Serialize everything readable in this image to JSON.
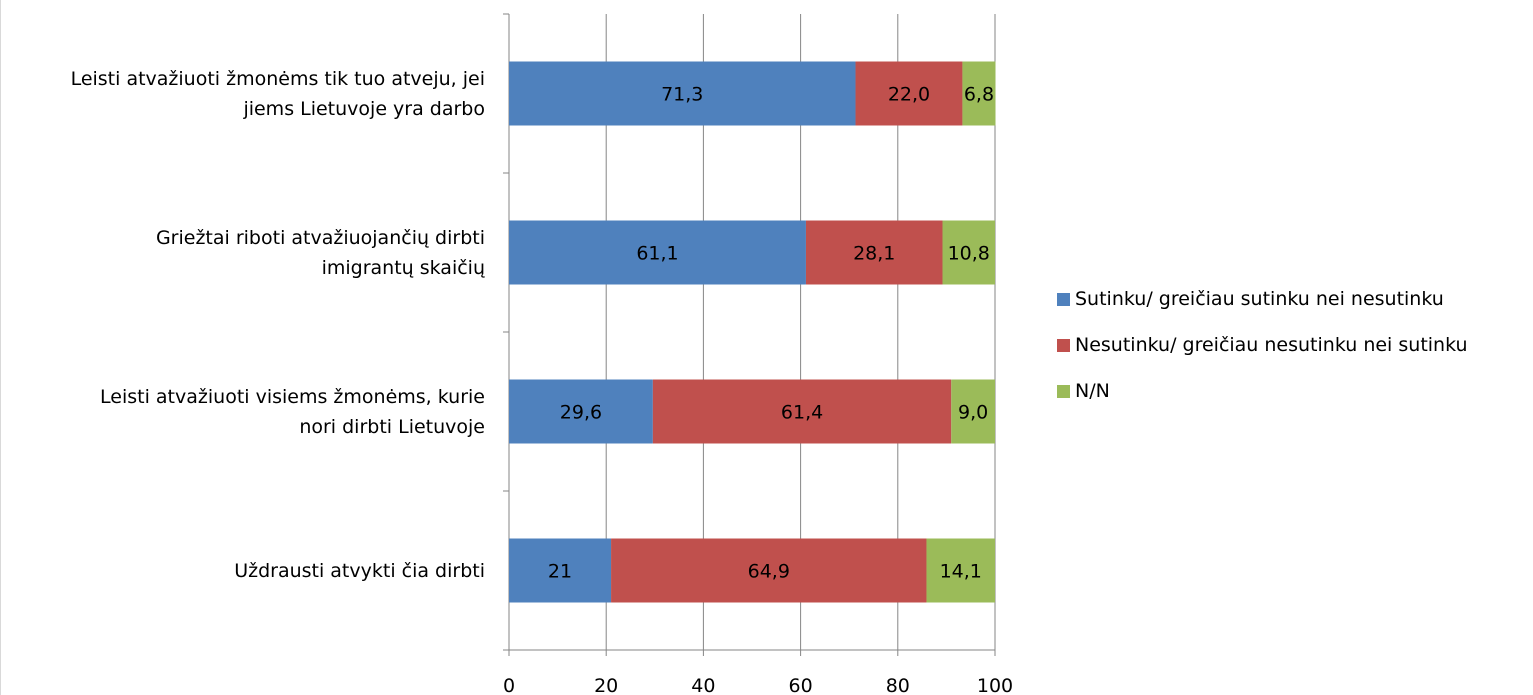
{
  "chart_data": {
    "type": "bar",
    "orientation": "horizontal",
    "stacked": true,
    "categories": [
      "Leisti atvažiuoti žmonėms tik tuo atveju, jei\njiems Lietuvoje yra darbo",
      "Griežtai riboti atvažiuojančių dirbti\nimigrantų skaičių",
      "Leisti atvažiuoti visiems žmonėms, kurie\nnori dirbti Lietuvoje",
      "Uždrausti atvykti čia dirbti"
    ],
    "series": [
      {
        "name": "Sutinku/ greičiau sutinku nei nesutinku",
        "color": "#4f81bd",
        "values": [
          71.3,
          61.1,
          29.6,
          21
        ],
        "labels": [
          "71,3",
          "61,1",
          "29,6",
          "21"
        ]
      },
      {
        "name": "Nesutinku/ greičiau nesutinku nei sutinku",
        "color": "#c0504d",
        "values": [
          22.0,
          28.1,
          61.4,
          64.9
        ],
        "labels": [
          "22,0",
          "28,1",
          "61,4",
          "64,9"
        ]
      },
      {
        "name": "N/N",
        "color": "#9bbb59",
        "values": [
          6.8,
          10.8,
          9.0,
          14.1
        ],
        "labels": [
          "6,8",
          "10,8",
          "9,0",
          "14,1"
        ]
      }
    ],
    "xlim": [
      0,
      100
    ],
    "xticks": [
      0,
      20,
      40,
      60,
      80,
      100
    ],
    "xtick_labels": [
      "0",
      "20",
      "40",
      "60",
      "80",
      "100"
    ],
    "grid": true,
    "legend_position": "right",
    "title": "",
    "xlabel": "",
    "ylabel": ""
  }
}
